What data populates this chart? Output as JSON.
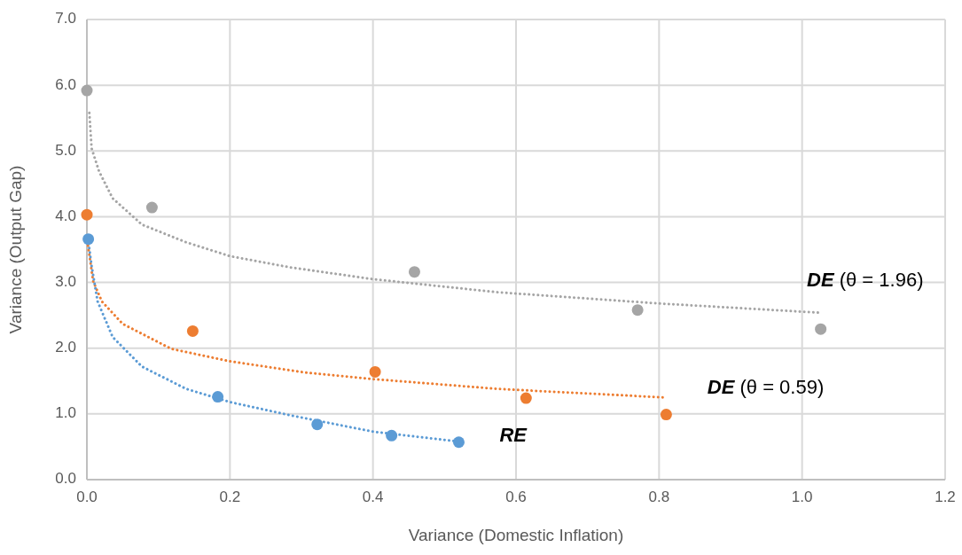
{
  "chart_data": {
    "type": "scatter",
    "xlabel": "Variance (Domestic Inflation)",
    "ylabel": "Variance (Output Gap)",
    "xlim": [
      0,
      1.2
    ],
    "ylim": [
      0,
      7
    ],
    "xticks": [
      {
        "value": 0,
        "label": "0.0"
      },
      0.2,
      0.4,
      0.6,
      0.8,
      {
        "value": 1,
        "label": "1.0"
      },
      1.2
    ],
    "yticks": [
      {
        "value": 0,
        "label": "0.0"
      },
      {
        "value": 1,
        "label": "1.0"
      },
      {
        "value": 2,
        "label": "2.0"
      },
      {
        "value": 3,
        "label": "3.0"
      },
      {
        "value": 4,
        "label": "4.0"
      },
      {
        "value": 5,
        "label": "5.0"
      },
      {
        "value": 6,
        "label": "6.0"
      },
      {
        "value": 7,
        "label": "7.0"
      }
    ],
    "grid": true,
    "marker": "circle",
    "series": [
      {
        "color": "#a5a5a5",
        "x": [
          0.0,
          0.091,
          0.458,
          0.77,
          1.026
        ],
        "values": [
          5.92,
          4.14,
          3.16,
          2.58,
          2.29
        ]
      },
      {
        "color": "#ed7d31",
        "x": [
          0.0,
          0.148,
          0.403,
          0.614,
          0.81
        ],
        "values": [
          4.03,
          2.26,
          1.64,
          1.24,
          0.99
        ]
      },
      {
        "color": "#5b9bd5",
        "x": [
          0.002,
          0.183,
          0.322,
          0.426,
          0.52
        ],
        "values": [
          3.66,
          1.26,
          0.84,
          0.67,
          0.57
        ]
      },
      {
        "type": "line",
        "name": "DE (θ = 1.96)",
        "marker": "none",
        "line_style": "dotted",
        "color": "#a5a5a5",
        "x": [
          0.0034,
          0.0066,
          0.017,
          0.036,
          0.077,
          0.139,
          0.2,
          0.284,
          0.4,
          0.575,
          0.8,
          1.024
        ],
        "values": [
          5.58,
          5.04,
          4.69,
          4.28,
          3.88,
          3.61,
          3.4,
          3.23,
          3.05,
          2.85,
          2.68,
          2.54
        ]
      },
      {
        "type": "line",
        "name": "DE (θ = 0.59)",
        "marker": "none",
        "line_style": "dotted",
        "color": "#ed7d31",
        "x": [
          0.0016,
          0.0087,
          0.021,
          0.05,
          0.118,
          0.2,
          0.305,
          0.4,
          0.575,
          0.808
        ],
        "values": [
          3.56,
          3.02,
          2.71,
          2.37,
          1.99,
          1.8,
          1.63,
          1.53,
          1.38,
          1.25
        ]
      },
      {
        "type": "line",
        "name": "RE",
        "marker": "none",
        "line_style": "dotted",
        "color": "#5b9bd5",
        "x": [
          0.0016,
          0.0066,
          0.015,
          0.036,
          0.077,
          0.139,
          0.2,
          0.284,
          0.4,
          0.52
        ],
        "values": [
          3.66,
          3.25,
          2.71,
          2.17,
          1.72,
          1.38,
          1.18,
          0.98,
          0.73,
          0.58
        ]
      }
    ]
  }
}
